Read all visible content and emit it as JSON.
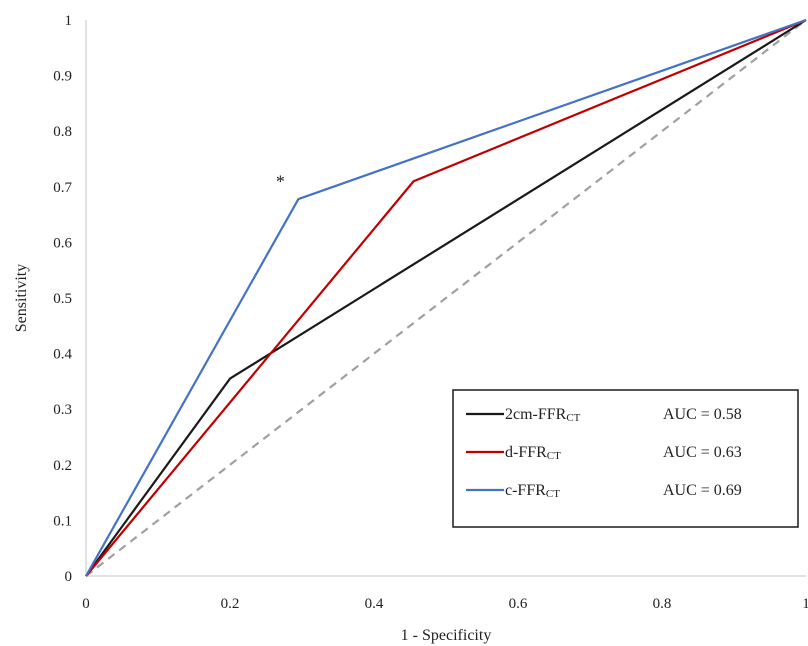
{
  "chart_data": {
    "type": "line",
    "xlabel": "1 - Specificity",
    "ylabel": "Sensitivity",
    "xlim": [
      0,
      1
    ],
    "ylim": [
      0,
      1
    ],
    "x_ticks": [
      "0",
      "0.2",
      "0.4",
      "0.6",
      "0.8",
      "1"
    ],
    "y_ticks": [
      "0",
      "0.1",
      "0.2",
      "0.3",
      "0.4",
      "0.5",
      "0.6",
      "0.7",
      "0.8",
      "0.9",
      "1"
    ],
    "grid": false,
    "legend_position": "bottom-right",
    "annotation": {
      "text": "*",
      "x": 0.27,
      "y": 0.72
    },
    "reference_line": {
      "style": "dashed",
      "color": "#a0a0a0",
      "points": [
        [
          0,
          0
        ],
        [
          1,
          1
        ]
      ]
    },
    "series": [
      {
        "name": "2cm-FFR",
        "sub": "CT",
        "auc": "AUC = 0.58",
        "color": "#1a1a1a",
        "points": [
          [
            0,
            0
          ],
          [
            0.2,
            0.355
          ],
          [
            1,
            1
          ]
        ]
      },
      {
        "name": "d-FFR",
        "sub": "CT",
        "auc": "AUC = 0.63",
        "color": "#c00000",
        "points": [
          [
            0,
            0
          ],
          [
            0.455,
            0.71
          ],
          [
            1,
            1
          ]
        ]
      },
      {
        "name": "c-FFR",
        "sub": "CT",
        "auc": "AUC = 0.69",
        "color": "#4472c4",
        "points": [
          [
            0,
            0
          ],
          [
            0.295,
            0.678
          ],
          [
            1,
            1
          ]
        ]
      }
    ]
  }
}
